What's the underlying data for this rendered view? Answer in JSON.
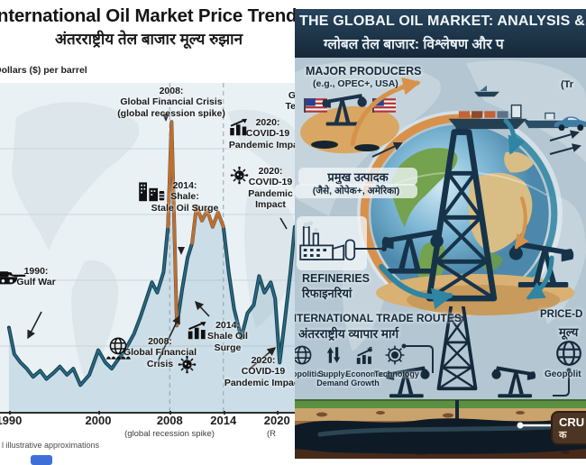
{
  "chart_data": {
    "type": "line",
    "title": "International Oil Market Price Trends",
    "title_hindi": "अंतरराष्ट्रीय तेल बाजार मूल्य रुझान",
    "ylabel": "Dollars ($) per barrel",
    "xlabel": "",
    "xlim": [
      1989,
      2022.5
    ],
    "ylim": [
      0,
      160
    ],
    "grid": "horizontal",
    "legend": "none",
    "x_ticks": [
      1990,
      2000,
      2008,
      2014,
      2020
    ],
    "dashed_marker_years": [
      2008,
      2014
    ],
    "x": [
      1990,
      1990.6,
      1991.3,
      1992,
      1992.7,
      1993.5,
      1994.2,
      1995,
      1995.7,
      1996.5,
      1997.2,
      1998,
      1999,
      2000,
      2000.8,
      2001.5,
      2002.3,
      2003,
      2004,
      2004.7,
      2005.4,
      2006,
      2006.6,
      2007.3,
      2007.8,
      2008.2,
      2008.8,
      2009.4,
      2010,
      2010.5,
      2011,
      2011.6,
      2012.2,
      2012.8,
      2013.4,
      2014,
      2014.6,
      2015.2,
      2016,
      2016.7,
      2017.4,
      2018,
      2018.6,
      2019.3,
      2019.8,
      2020.3,
      2020.9,
      2021.5,
      2022,
      2022.5
    ],
    "values": [
      41,
      28,
      24,
      21,
      17,
      20,
      16,
      19,
      22,
      18,
      21,
      13,
      18,
      30,
      24,
      21,
      26,
      30,
      38,
      46,
      55,
      63,
      58,
      68,
      90,
      141,
      42,
      60,
      75,
      82,
      100,
      93,
      98,
      90,
      97,
      90,
      68,
      50,
      36,
      48,
      52,
      66,
      58,
      63,
      55,
      24,
      45,
      68,
      90,
      78
    ],
    "line_color": "#2a6c88",
    "line_outline_color": "#16404f",
    "area_color": "rgba(125,168,193,0.28)",
    "highlight_color": "#bf6e2f",
    "highlight_ranges": [
      [
        2007.7,
        2008.9
      ],
      [
        2010.4,
        2014.1
      ]
    ],
    "events": [
      "1990: Gulf War",
      "2008: Global Financial Crisis (global recession spike)",
      "2014: Shale Oil Surge",
      "2020: COVID-19 Pandemic Impact"
    ]
  },
  "left_poster": {
    "title": "International Oil Market Price Trends",
    "title_hindi": "अंतरराष्ट्रीय तेल बाजार मूल्य रुझान",
    "ylabel": "Dollars ($) per barrel",
    "footnote": "l illustrative approximations",
    "note_2008": "(global recession spike)",
    "note_2020": "(R",
    "ann": {
      "crisis_top": {
        "l1": "2008:",
        "l2": "Global Financial Crisis",
        "l3": "(global recession spike)"
      },
      "tensions": {
        "l1": "G",
        "l2": "Te"
      },
      "covid_chart": {
        "l1": "2020:",
        "l2": "COVID-19",
        "l3": "Pandemic Impact"
      },
      "covid_virus": {
        "l1": "2020:",
        "l2": "COVID-19",
        "l3": "Pandemic",
        "l4": "Impact"
      },
      "shale_mid": {
        "l1": "2014:",
        "l2": "Shale:",
        "l3": "Stale Oil Surge"
      },
      "gulf_war": {
        "l1": "1990:",
        "l2": "Gulf War"
      },
      "crisis_bottom": {
        "l1": "2008:",
        "l2": "Global Financial",
        "l3": "Crisis"
      },
      "shale_bottom": {
        "l1": "2014:",
        "l2": "Shale Oil",
        "l3": "Surge"
      },
      "covid_bottom": {
        "l1": "2020:",
        "l2": "COVID-19",
        "l3": "Pandemic Impact"
      }
    }
  },
  "right_poster": {
    "title": "THE GLOBAL OIL MARKET: ANALYSIS &",
    "title_hindi": "ग्लोबल तेल बाजार: विश्लेषण और प",
    "major_producers": {
      "en": "MAJOR PRODUCERS",
      "en_sub": "(e.g., OPEC+, USA)",
      "hi": "प्रमुख उत्पादक",
      "hi_sub": "(जैसे, ओपेक+, अमेरिका)"
    },
    "trade_note": "(Tr",
    "refineries": {
      "en": "REFINERIES",
      "hi": "रिफाइनरियां"
    },
    "trade_routes": {
      "en": "INTERNATIONAL TRADE ROUTES",
      "hi": "अंतरराष्ट्रीय व्यापार मार्ग"
    },
    "factors": [
      {
        "l1": "Geopolitics",
        "l2": ""
      },
      {
        "l1": "Supply/",
        "l2": "Demand"
      },
      {
        "l1": "Economic",
        "l2": "Growth"
      },
      {
        "l1": "Technology",
        "l2": ""
      }
    ],
    "price_column": {
      "en": "PRICE-D",
      "hi": "मूल्य",
      "item": "Geopolit"
    },
    "crude_label": {
      "en": "CRU",
      "hi": "क"
    },
    "colors": {
      "header_bg": "#1c3548",
      "accent_orange": "#d8914a",
      "accent_teal": "#2f85a3",
      "dark_navy": "#1b3249"
    }
  }
}
